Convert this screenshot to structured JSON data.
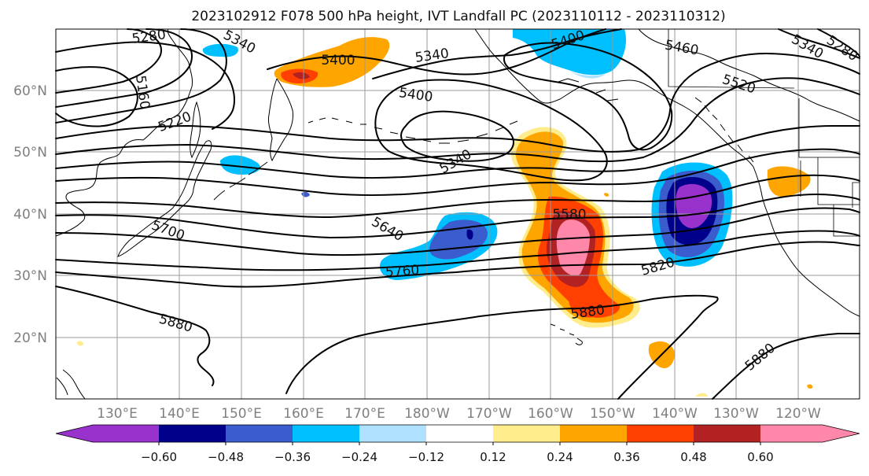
{
  "title": "2023102912 F078 500 hPa height, IVT Landfall PC (2023110112 - 2023110312)",
  "lat_labels": [
    "60°N",
    "50°N",
    "40°N",
    "30°N",
    "20°N"
  ],
  "lon_labels": [
    "130°E",
    "140°E",
    "150°E",
    "160°E",
    "170°E",
    "180°W",
    "170°W",
    "160°W",
    "150°W",
    "140°W",
    "130°W",
    "120°W"
  ],
  "contour_labels": [
    "5280",
    "5340",
    "5160",
    "5220",
    "5400",
    "5340",
    "5400",
    "5340",
    "5400",
    "5460",
    "5520",
    "5340",
    "5280",
    "5700",
    "5640",
    "5760",
    "5580",
    "5820",
    "5880",
    "5880",
    "5880"
  ],
  "colorbar": {
    "colors": [
      "#9932cc",
      "#00008b",
      "#3a5ccc",
      "#00bfff",
      "#b0e0ff",
      "#ffffff",
      "#ffec8b",
      "#ffa500",
      "#ff4000",
      "#b22222",
      "#ff88aa",
      "#ffaadd"
    ],
    "tick_labels": [
      "−0.60",
      "−0.48",
      "−0.36",
      "−0.24",
      "−0.12",
      "0.12",
      "0.24",
      "0.36",
      "0.48",
      "0.60"
    ]
  }
}
